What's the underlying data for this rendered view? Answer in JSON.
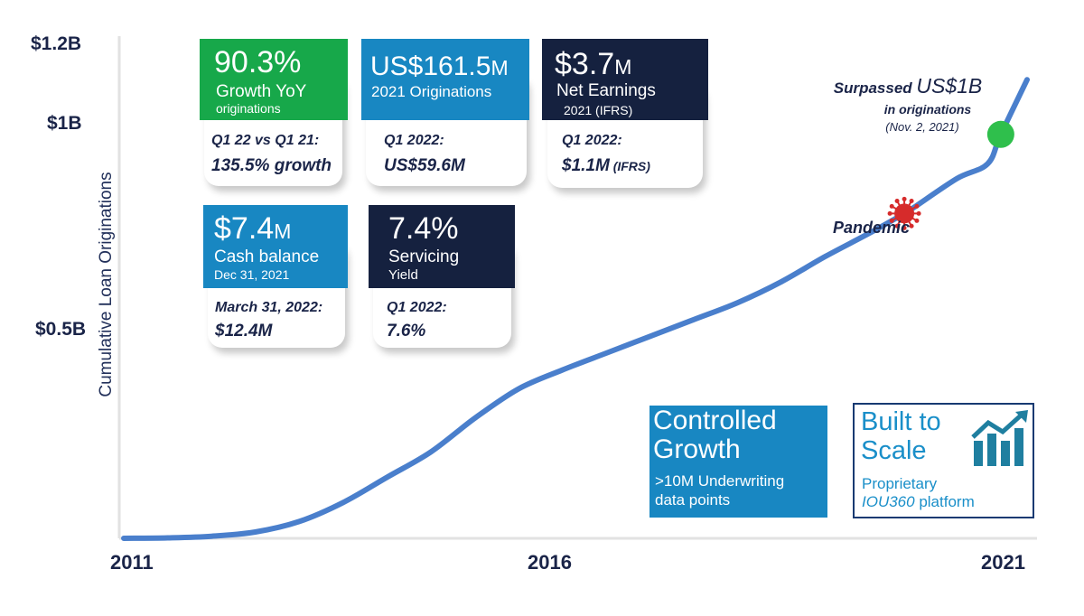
{
  "chart_data": {
    "type": "line",
    "title": "",
    "xlabel": "",
    "ylabel": "Cumulative Loan Originations",
    "x_ticks": [
      "2011",
      "2016",
      "2021"
    ],
    "y_ticks": [
      "$1.2B",
      "$1B",
      "$0.5B"
    ],
    "xlim": [
      2011,
      2021.3
    ],
    "ylim": [
      0,
      1.2
    ],
    "y_unit": "US$ billions",
    "grid": false,
    "color": "#4a7fcc",
    "series": [
      {
        "x": [
          2011,
          2011.5,
          2012,
          2012.5,
          2013,
          2013.5,
          2014,
          2014.5,
          2015,
          2015.5,
          2016,
          2016.5,
          2017,
          2017.5,
          2018,
          2018.5,
          2019,
          2019.5,
          2019.9,
          2020,
          2020.5,
          2020.85,
          2021,
          2021.3
        ],
        "y": [
          0,
          0.001,
          0.005,
          0.015,
          0.04,
          0.085,
          0.145,
          0.205,
          0.285,
          0.355,
          0.4,
          0.44,
          0.48,
          0.52,
          0.56,
          0.61,
          0.67,
          0.725,
          0.772,
          0.785,
          0.855,
          0.89,
          0.96,
          1.09
        ]
      }
    ],
    "markers": [
      {
        "name": "pandemic",
        "label": "Pandemic",
        "x": 2019.9,
        "y": 0.772,
        "color": "#d62b2b"
      },
      {
        "name": "surpassed",
        "x": 2021,
        "y": 0.96,
        "color": "#2fbf4c"
      }
    ]
  },
  "annotations": {
    "surpassed_a": "Surpassed ",
    "surpassed_b": "US$1B",
    "surpassed_line2": "in originations",
    "surpassed_line3": "(Nov. 2, 2021)",
    "pandemic": "Pandemic"
  },
  "cards": {
    "growth": {
      "big": "90.3%",
      "mid": "Growth YoY",
      "sml": "originations",
      "l1": "Q1 22 vs Q1 21:",
      "l2": "135.5% growth",
      "color": "#17a84a"
    },
    "originations": {
      "big": "US$161.5",
      "big_unit": "M",
      "mid": "2021 Originations",
      "l1": "Q1 2022:",
      "l2": "US$59.6M",
      "color": "#1887c2"
    },
    "earnings": {
      "big": "$3.7",
      "big_unit": "M",
      "mid": "Net Earnings",
      "sml": "2021 (IFRS)",
      "l1": "Q1 2022:",
      "l2": "$1.1M",
      "l2_small": " (IFRS)",
      "color": "#15213f"
    },
    "cash": {
      "big": "$7.4",
      "big_unit": "M",
      "mid": "Cash balance",
      "sml": "Dec 31, 2021",
      "l1": "March 31, 2022:",
      "l2": "$12.4M",
      "color": "#1887c2"
    },
    "servicing": {
      "big": "7.4%",
      "mid": "Servicing",
      "sml": "Yield",
      "l1": "Q1 2022:",
      "l2": "7.6%",
      "color": "#15213f"
    }
  },
  "controlled_growth": {
    "line1": "Controlled",
    "line2": "Growth",
    "sub1": ">10M Underwriting",
    "sub2": "data points",
    "color": "#1887c2"
  },
  "built_to_scale": {
    "line1": "Built to",
    "line2": "Scale",
    "sub1": "Proprietary",
    "sub2_italic": "IOU360",
    "sub2_rest": " platform",
    "color": "#1a8fc9",
    "icon": "growth-bar-chart-icon"
  }
}
